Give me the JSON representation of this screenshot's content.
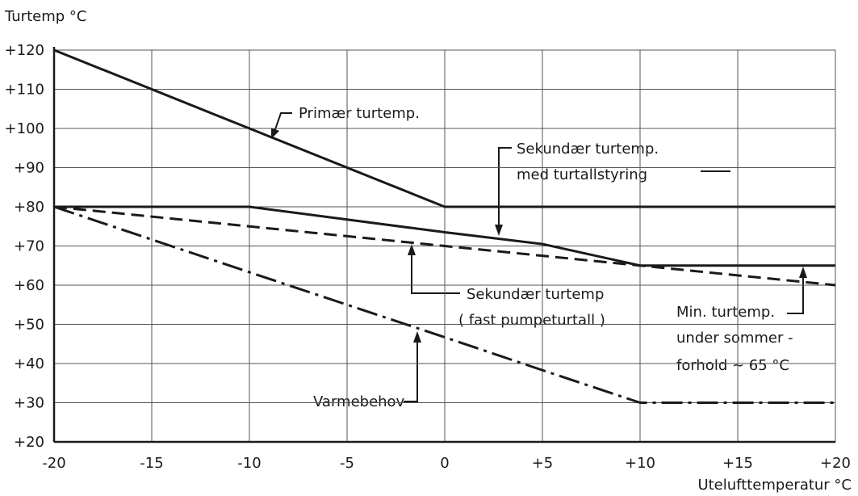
{
  "chart_data": {
    "type": "line",
    "ylabel": "Turtemp °C",
    "xlabel": "Utelufttemperatur °C",
    "x": [
      -20,
      -10,
      0,
      5,
      10,
      20
    ],
    "series": [
      {
        "name": "Primær turtemp.",
        "color": "#1a1a1a",
        "dash": "solid",
        "values": [
          120,
          100,
          80,
          80,
          80,
          80
        ]
      },
      {
        "name": "Sekundær turtemp.",
        "color": "#1a1a1a",
        "dash": "solid",
        "values": [
          80,
          80,
          73.5,
          70.5,
          65,
          65
        ]
      },
      {
        "name": "Sekundær turtemp",
        "color": "#1a1a1a",
        "dash": "dashed",
        "values": [
          80,
          75,
          70,
          67.5,
          65,
          60
        ]
      },
      {
        "name": "Varmebehov",
        "color": "#1a1a1a",
        "dash": "dashdot",
        "values": [
          80,
          63.3,
          46.7,
          38.3,
          30,
          30
        ]
      }
    ],
    "annotations": [
      "med turtallstyring",
      "( fast pumpeturtall )",
      "Min. turtemp.",
      "under sommer -",
      "forhold ~ 65 °C"
    ],
    "xlim": [
      -20,
      20
    ],
    "xticks": [
      -20,
      -15,
      -10,
      -5,
      0,
      {
        "value": 5,
        "label": "+5"
      },
      {
        "value": 10,
        "label": "+10"
      },
      {
        "value": 15,
        "label": "+15"
      },
      {
        "value": 20,
        "label": "+20"
      }
    ],
    "ylim": [
      20,
      120
    ],
    "yticks": [
      {
        "value": 20,
        "label": "+20"
      },
      {
        "value": 30,
        "label": "+30"
      },
      {
        "value": 40,
        "label": "+40"
      },
      {
        "value": 50,
        "label": "+50"
      },
      {
        "value": 60,
        "label": "+60"
      },
      {
        "value": 70,
        "label": "+70"
      },
      {
        "value": 80,
        "label": "+80"
      },
      {
        "value": 90,
        "label": "+90"
      },
      {
        "value": 100,
        "label": "+100"
      },
      {
        "value": 110,
        "label": "+110"
      },
      {
        "value": 120,
        "label": "+120"
      }
    ],
    "grid": true
  }
}
